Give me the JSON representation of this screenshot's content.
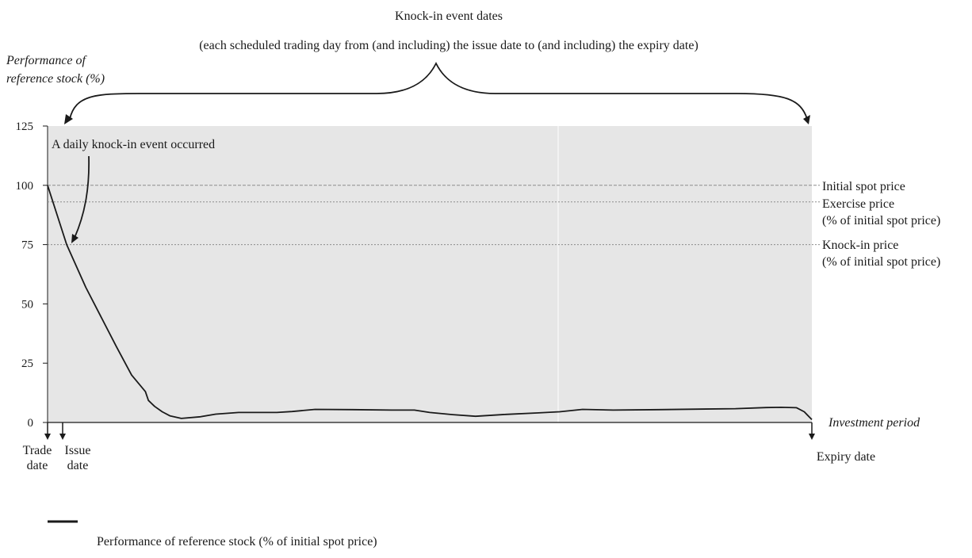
{
  "header": {
    "brace_title": "Knock-in event dates",
    "brace_subtitle": "(each scheduled trading day from (and including) the issue date to (and including) the expiry date)"
  },
  "y_axis": {
    "label_line1": "Performance of",
    "label_line2": "reference stock (%)"
  },
  "x_axis": {
    "label": "Investment period"
  },
  "annotations": {
    "knock_in_event": "A daily knock-in event occurred",
    "trade_date": [
      "Trade",
      "date"
    ],
    "issue_date": [
      "Issue",
      "date"
    ],
    "expiry_date": "Expiry date"
  },
  "reference_lines": [
    {
      "name": "Initial spot price",
      "labels": [
        "Initial spot price"
      ],
      "value": 100
    },
    {
      "name": "Exercise price",
      "labels": [
        "Exercise price",
        "(% of initial spot price)"
      ],
      "value": 93
    },
    {
      "name": "Knock-in price",
      "labels": [
        "Knock-in price",
        "(% of initial spot price)"
      ],
      "value": 75
    }
  ],
  "legend": {
    "label": "Performance of reference stock (% of initial spot price)"
  },
  "colors": {
    "plot_background": "#e6e6e6",
    "line": "#1a1a1a",
    "reference_line": "#8c8c8c"
  },
  "chart_data": {
    "type": "line",
    "ylim": [
      0,
      125
    ],
    "xlim": [
      0,
      100
    ],
    "yticks": [
      0,
      25,
      50,
      75,
      100,
      125
    ],
    "grid": false,
    "legend_position": "bottom-left",
    "series": [
      {
        "name": "Performance of reference stock (% of initial spot price)",
        "x": [
          0,
          2.5,
          5,
          9,
          11,
          12.8,
          13.2,
          14,
          15,
          16,
          17.5,
          20,
          22,
          25,
          30,
          32,
          35,
          40,
          45,
          48,
          50,
          53,
          56,
          60,
          64,
          67,
          70,
          74,
          80,
          90,
          94,
          96,
          98,
          99,
          100
        ],
        "y": [
          100,
          75,
          57,
          32,
          20,
          13,
          9.3,
          6.8,
          4.5,
          2.8,
          1.7,
          2.4,
          3.5,
          4.2,
          4.2,
          4.6,
          5.5,
          5.4,
          5.2,
          5.2,
          4.2,
          3.3,
          2.6,
          3.4,
          4.0,
          4.5,
          5.5,
          5.2,
          5.4,
          5.8,
          6.3,
          6.4,
          6.2,
          4.5,
          1.2
        ]
      }
    ]
  }
}
